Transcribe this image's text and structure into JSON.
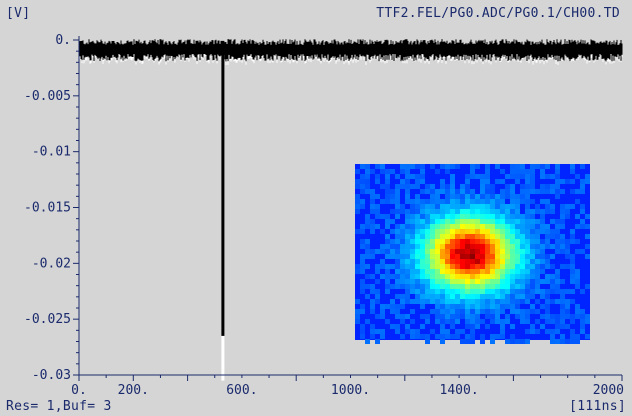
{
  "header": {
    "unit_label": "[V]",
    "channel": "TTF2.FEL/PG0.ADC/PG0.1/CH00.TD"
  },
  "footer": {
    "status": "Res= 1,Buf= 3",
    "x_unit": "[111ns]"
  },
  "colors": {
    "panel_background": "#d5d5d5",
    "axis_text": "#1a2a6c",
    "trace": "#000000",
    "trace_envelope": "#ffffff"
  },
  "beam_image": {
    "description_icon": "beam-spot-heatmap",
    "colormap": "jet"
  },
  "chart_data": {
    "type": "line",
    "title": "TTF2.FEL/PG0.ADC/PG0.1/CH00.TD",
    "xlabel": "[111ns]",
    "ylabel": "[V]",
    "xlim": [
      0,
      2000
    ],
    "ylim": [
      -0.03,
      0
    ],
    "x_ticks": [
      0,
      200,
      600,
      1000,
      1400,
      2000
    ],
    "x_tick_labels": [
      "0.",
      "200.",
      "600.",
      "1000.",
      "1400.",
      "2000"
    ],
    "y_ticks": [
      0,
      -0.005,
      -0.01,
      -0.015,
      -0.02,
      -0.025,
      -0.03
    ],
    "y_tick_labels": [
      "0.",
      "-0.005",
      "-0.01",
      "-0.015",
      "-0.02",
      "-0.025",
      "-0.03"
    ],
    "grid": false,
    "series": [
      {
        "baseline": -0.0008,
        "noise_amplitude": 0.0008,
        "pulse_x": 530,
        "pulse_min": -0.0265,
        "pulse_envelope_min": -0.0305
      }
    ]
  }
}
